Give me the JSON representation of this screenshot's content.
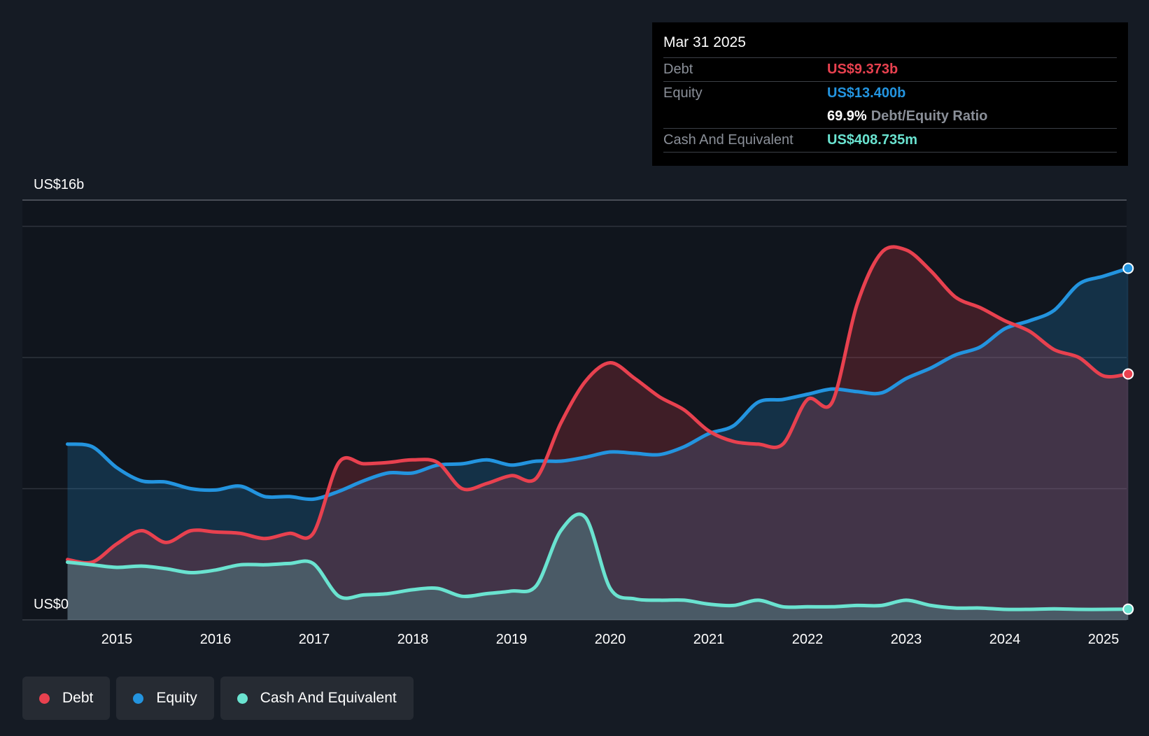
{
  "tooltip": {
    "date": "Mar 31 2025",
    "debt_label": "Debt",
    "debt_value": "US$9.373b",
    "equity_label": "Equity",
    "equity_value": "US$13.400b",
    "ratio_value": "69.9%",
    "ratio_label": "Debt/Equity Ratio",
    "cash_label": "Cash And Equivalent",
    "cash_value": "US$408.735m"
  },
  "legend": {
    "debt": "Debt",
    "equity": "Equity",
    "cash": "Cash And Equivalent"
  },
  "colors": {
    "debt": "#e8414f",
    "equity": "#2394df",
    "cash": "#6ae3d0",
    "background": "#151b24"
  },
  "chart_data": {
    "type": "area",
    "title": "",
    "y_top_label": "US$16b",
    "y_bottom_label": "US$0",
    "ylim": [
      0,
      16
    ],
    "xlim": [
      2014.5,
      2025.25
    ],
    "x_ticks": [
      "2015",
      "2016",
      "2017",
      "2018",
      "2019",
      "2020",
      "2021",
      "2022",
      "2023",
      "2024",
      "2025"
    ],
    "gridlines": [
      5,
      10,
      15
    ],
    "series": [
      {
        "name": "Debt",
        "key": "debt",
        "points": [
          [
            2014.5,
            2.3
          ],
          [
            2014.75,
            2.2
          ],
          [
            2015.0,
            2.9
          ],
          [
            2015.25,
            3.4
          ],
          [
            2015.5,
            2.95
          ],
          [
            2015.75,
            3.4
          ],
          [
            2016.0,
            3.35
          ],
          [
            2016.25,
            3.3
          ],
          [
            2016.5,
            3.1
          ],
          [
            2016.75,
            3.3
          ],
          [
            2016.99,
            3.3
          ],
          [
            2017.25,
            6.0
          ],
          [
            2017.5,
            5.95
          ],
          [
            2017.75,
            6.0
          ],
          [
            2018.0,
            6.1
          ],
          [
            2018.25,
            6.0
          ],
          [
            2018.5,
            5.0
          ],
          [
            2018.75,
            5.2
          ],
          [
            2019.0,
            5.5
          ],
          [
            2019.25,
            5.4
          ],
          [
            2019.5,
            7.5
          ],
          [
            2019.75,
            9.1
          ],
          [
            2020.0,
            9.8
          ],
          [
            2020.25,
            9.2
          ],
          [
            2020.5,
            8.5
          ],
          [
            2020.75,
            8.0
          ],
          [
            2021.0,
            7.2
          ],
          [
            2021.25,
            6.8
          ],
          [
            2021.5,
            6.7
          ],
          [
            2021.75,
            6.7
          ],
          [
            2022.0,
            8.4
          ],
          [
            2022.25,
            8.3
          ],
          [
            2022.5,
            12.0
          ],
          [
            2022.75,
            14.0
          ],
          [
            2023.0,
            14.1
          ],
          [
            2023.25,
            13.3
          ],
          [
            2023.5,
            12.3
          ],
          [
            2023.75,
            11.9
          ],
          [
            2024.0,
            11.4
          ],
          [
            2024.25,
            11.0
          ],
          [
            2024.5,
            10.3
          ],
          [
            2024.75,
            10.0
          ],
          [
            2025.0,
            9.3
          ],
          [
            2025.25,
            9.373
          ]
        ]
      },
      {
        "name": "Equity",
        "key": "equity",
        "points": [
          [
            2014.5,
            6.7
          ],
          [
            2014.75,
            6.6
          ],
          [
            2015.0,
            5.8
          ],
          [
            2015.25,
            5.3
          ],
          [
            2015.5,
            5.25
          ],
          [
            2015.75,
            5.0
          ],
          [
            2016.0,
            4.95
          ],
          [
            2016.25,
            5.1
          ],
          [
            2016.5,
            4.7
          ],
          [
            2016.75,
            4.7
          ],
          [
            2016.99,
            4.6
          ],
          [
            2017.25,
            4.9
          ],
          [
            2017.5,
            5.3
          ],
          [
            2017.75,
            5.6
          ],
          [
            2018.0,
            5.6
          ],
          [
            2018.25,
            5.9
          ],
          [
            2018.5,
            5.95
          ],
          [
            2018.75,
            6.1
          ],
          [
            2019.0,
            5.9
          ],
          [
            2019.25,
            6.05
          ],
          [
            2019.5,
            6.05
          ],
          [
            2019.75,
            6.2
          ],
          [
            2020.0,
            6.4
          ],
          [
            2020.25,
            6.35
          ],
          [
            2020.5,
            6.3
          ],
          [
            2020.75,
            6.6
          ],
          [
            2021.0,
            7.1
          ],
          [
            2021.25,
            7.4
          ],
          [
            2021.5,
            8.3
          ],
          [
            2021.75,
            8.4
          ],
          [
            2022.0,
            8.6
          ],
          [
            2022.25,
            8.8
          ],
          [
            2022.5,
            8.7
          ],
          [
            2022.75,
            8.65
          ],
          [
            2023.0,
            9.2
          ],
          [
            2023.25,
            9.6
          ],
          [
            2023.5,
            10.1
          ],
          [
            2023.75,
            10.4
          ],
          [
            2024.0,
            11.1
          ],
          [
            2024.25,
            11.4
          ],
          [
            2024.5,
            11.8
          ],
          [
            2024.75,
            12.8
          ],
          [
            2025.0,
            13.1
          ],
          [
            2025.25,
            13.4
          ]
        ]
      },
      {
        "name": "Cash And Equivalent",
        "key": "cash",
        "points": [
          [
            2014.5,
            2.2
          ],
          [
            2014.75,
            2.1
          ],
          [
            2015.0,
            2.0
          ],
          [
            2015.25,
            2.05
          ],
          [
            2015.5,
            1.95
          ],
          [
            2015.75,
            1.8
          ],
          [
            2016.0,
            1.9
          ],
          [
            2016.25,
            2.1
          ],
          [
            2016.5,
            2.1
          ],
          [
            2016.75,
            2.15
          ],
          [
            2016.99,
            2.15
          ],
          [
            2017.25,
            0.9
          ],
          [
            2017.5,
            0.95
          ],
          [
            2017.75,
            1.0
          ],
          [
            2018.0,
            1.15
          ],
          [
            2018.25,
            1.2
          ],
          [
            2018.5,
            0.9
          ],
          [
            2018.75,
            1.0
          ],
          [
            2019.0,
            1.1
          ],
          [
            2019.25,
            1.3
          ],
          [
            2019.5,
            3.4
          ],
          [
            2019.75,
            3.9
          ],
          [
            2020.0,
            1.2
          ],
          [
            2020.25,
            0.8
          ],
          [
            2020.5,
            0.75
          ],
          [
            2020.75,
            0.75
          ],
          [
            2021.0,
            0.6
          ],
          [
            2021.25,
            0.55
          ],
          [
            2021.5,
            0.75
          ],
          [
            2021.75,
            0.5
          ],
          [
            2022.0,
            0.5
          ],
          [
            2022.25,
            0.5
          ],
          [
            2022.5,
            0.55
          ],
          [
            2022.75,
            0.55
          ],
          [
            2023.0,
            0.75
          ],
          [
            2023.25,
            0.55
          ],
          [
            2023.5,
            0.45
          ],
          [
            2023.75,
            0.45
          ],
          [
            2024.0,
            0.4
          ],
          [
            2024.25,
            0.4
          ],
          [
            2024.5,
            0.42
          ],
          [
            2024.75,
            0.4
          ],
          [
            2025.0,
            0.4
          ],
          [
            2025.25,
            0.409
          ]
        ]
      }
    ]
  }
}
